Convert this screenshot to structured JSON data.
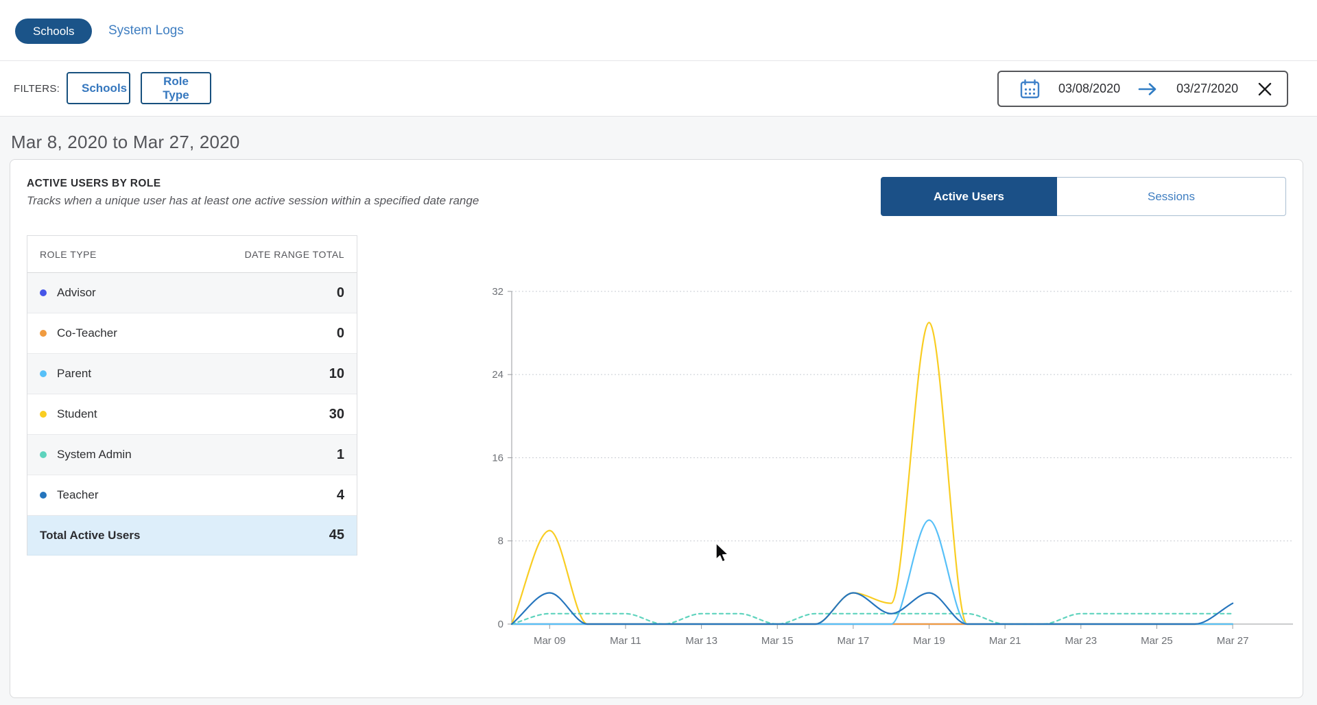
{
  "nav": {
    "tabs": [
      {
        "label": "Schools",
        "active": true
      },
      {
        "label": "System Logs",
        "active": false
      }
    ]
  },
  "filters": {
    "label": "FILTERS:",
    "buttons": [
      "Schools",
      "Role Type"
    ],
    "date_range": {
      "start": "03/08/2020",
      "end": "03/27/2020"
    },
    "icons": [
      "calendar-icon",
      "arrow-right-icon",
      "close-icon"
    ]
  },
  "page": {
    "heading": "Mar 8, 2020 to Mar 27, 2020"
  },
  "card": {
    "title": "ACTIVE USERS BY ROLE",
    "subtitle": "Tracks when a unique user has at least one active session within a specified date range",
    "toggle": [
      {
        "label": "Active Users",
        "active": true
      },
      {
        "label": "Sessions",
        "active": false
      }
    ]
  },
  "colors": {
    "primary_navy": "#1b5087",
    "link_blue": "#3f7ec1",
    "total_row_bg": "#ddeefa"
  },
  "table": {
    "columns": [
      "ROLE TYPE",
      "DATE RANGE TOTAL"
    ],
    "rows": [
      {
        "role": "Advisor",
        "total": 0,
        "color": "#4656e8"
      },
      {
        "role": "Co-Teacher",
        "total": 0,
        "color": "#f09b40"
      },
      {
        "role": "Parent",
        "total": 10,
        "color": "#57c0f8"
      },
      {
        "role": "Student",
        "total": 30,
        "color": "#f9cd22"
      },
      {
        "role": "System Admin",
        "total": 1,
        "color": "#5ed3bd"
      },
      {
        "role": "Teacher",
        "total": 4,
        "color": "#2575bd"
      }
    ],
    "total_row": {
      "label": "Total Active Users",
      "total": 45
    }
  },
  "chart_data": {
    "type": "line",
    "x": [
      "Mar 08",
      "Mar 09",
      "Mar 10",
      "Mar 11",
      "Mar 12",
      "Mar 13",
      "Mar 14",
      "Mar 15",
      "Mar 16",
      "Mar 17",
      "Mar 18",
      "Mar 19",
      "Mar 20",
      "Mar 21",
      "Mar 22",
      "Mar 23",
      "Mar 24",
      "Mar 25",
      "Mar 26",
      "Mar 27"
    ],
    "x_tick_indices": [
      1,
      3,
      5,
      7,
      9,
      11,
      13,
      15,
      17,
      19
    ],
    "x_tick_labels": [
      "Mar 09",
      "Mar 11",
      "Mar 13",
      "Mar 15",
      "Mar 17",
      "Mar 19",
      "Mar 21",
      "Mar 23",
      "Mar 25",
      "Mar 27"
    ],
    "ylim": [
      0,
      32
    ],
    "yticks": [
      0,
      8,
      16,
      24,
      32
    ],
    "grid": "dotted horizontal gridlines at each y tick",
    "legend_position": "none (role table at left acts as legend)",
    "series": [
      {
        "name": "Advisor",
        "color": "#4656e8",
        "dashed": false,
        "values": [
          0,
          0,
          0,
          0,
          0,
          0,
          0,
          0,
          0,
          0,
          0,
          0,
          0,
          0,
          0,
          0,
          0,
          0,
          0,
          0
        ]
      },
      {
        "name": "Co-Teacher",
        "color": "#f09b40",
        "dashed": false,
        "values": [
          0,
          0,
          0,
          0,
          0,
          0,
          0,
          0,
          0,
          0,
          0,
          0,
          0,
          0,
          0,
          0,
          0,
          0,
          0,
          0
        ]
      },
      {
        "name": "Parent",
        "color": "#57c0f8",
        "dashed": false,
        "values": [
          0,
          0,
          0,
          0,
          0,
          0,
          0,
          0,
          0,
          0,
          0,
          10,
          0,
          0,
          0,
          0,
          0,
          0,
          0,
          0
        ]
      },
      {
        "name": "Student",
        "color": "#f9cd22",
        "dashed": false,
        "values": [
          0,
          9,
          0,
          0,
          0,
          0,
          0,
          0,
          0,
          3,
          2,
          29,
          0,
          0,
          0,
          0,
          0,
          0,
          0,
          0
        ]
      },
      {
        "name": "System Admin",
        "color": "#5ed3bd",
        "dashed": true,
        "values": [
          0,
          1,
          1,
          1,
          0,
          1,
          1,
          0,
          1,
          1,
          1,
          1,
          1,
          0,
          0,
          1,
          1,
          1,
          1,
          1
        ]
      },
      {
        "name": "Teacher",
        "color": "#2575bd",
        "dashed": false,
        "values": [
          0,
          3,
          0,
          0,
          0,
          0,
          0,
          0,
          0,
          3,
          1,
          3,
          0,
          0,
          0,
          0,
          0,
          0,
          0,
          2
        ]
      }
    ]
  }
}
